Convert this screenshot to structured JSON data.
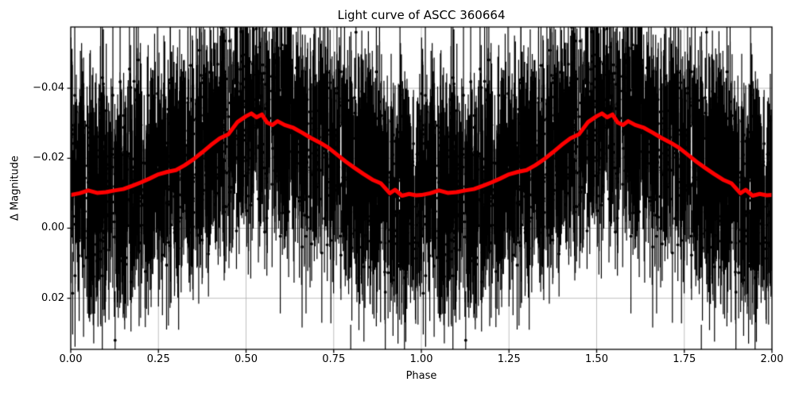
{
  "chart_data": {
    "type": "scatter",
    "title": "Light curve of ASCC 360664",
    "xlabel": "Phase",
    "ylabel": "Δ Magnitude",
    "xlim": [
      0,
      2
    ],
    "ylim_top": -0.0575,
    "ylim_bottom": 0.0346,
    "y_inverted": true,
    "grid": true,
    "legend": "none",
    "x_ticks": [
      0,
      0.25,
      0.5,
      0.75,
      1.0,
      1.25,
      1.5,
      1.75,
      2.0
    ],
    "x_tick_labels": [
      "0.00",
      "0.25",
      "0.50",
      "0.75",
      "1.00",
      "1.25",
      "1.50",
      "1.75",
      "2.00"
    ],
    "y_ticks": [
      -0.04,
      -0.02,
      0.0,
      0.02
    ],
    "y_tick_labels": [
      "−0.04",
      "−0.02",
      "0.00",
      "0.02"
    ],
    "colors": {
      "background": "#ffffff",
      "axis": "#000000",
      "grid": "#b0b0b0",
      "observations": "#000000",
      "mean_line": "#ff0000"
    },
    "series": [
      {
        "name": "smoothed-mean",
        "type": "line",
        "color": "#ff0000",
        "linewidth": 5,
        "repeat_offsets": [
          0,
          1
        ],
        "phase": [
          0.0,
          0.025,
          0.05,
          0.075,
          0.1,
          0.125,
          0.15,
          0.175,
          0.2,
          0.225,
          0.25,
          0.275,
          0.3,
          0.325,
          0.35,
          0.375,
          0.4,
          0.425,
          0.45,
          0.475,
          0.5,
          0.515,
          0.53,
          0.545,
          0.56,
          0.575,
          0.59,
          0.61,
          0.635,
          0.66,
          0.685,
          0.71,
          0.735,
          0.76,
          0.785,
          0.81,
          0.835,
          0.86,
          0.885,
          0.91,
          0.925,
          0.945,
          0.965,
          0.985,
          1.0
        ],
        "values": [
          -0.0095,
          -0.01,
          -0.0108,
          -0.0101,
          -0.0103,
          -0.0108,
          -0.0112,
          -0.0121,
          -0.0131,
          -0.0142,
          -0.0154,
          -0.0161,
          -0.0166,
          -0.018,
          -0.0197,
          -0.0217,
          -0.0238,
          -0.0257,
          -0.0269,
          -0.0303,
          -0.032,
          -0.0328,
          -0.0317,
          -0.0325,
          -0.0302,
          -0.0295,
          -0.0306,
          -0.0295,
          -0.0287,
          -0.0273,
          -0.0258,
          -0.0245,
          -0.023,
          -0.021,
          -0.019,
          -0.0172,
          -0.0155,
          -0.0139,
          -0.0128,
          -0.01,
          -0.011,
          -0.0093,
          -0.0098,
          -0.0094,
          -0.0095
        ]
      },
      {
        "name": "observations-errorbar-cloud",
        "type": "errorbar",
        "color": "#000000",
        "marker": "dot",
        "marker_radius": 1.9,
        "elinewidth": 1.2,
        "n_points": 1600,
        "noise_sigma": 0.011,
        "outlier_fraction": 0.02,
        "outlier_extra_sigma": 0.018,
        "err_min": 0.01,
        "err_max": 0.024,
        "seed": 12,
        "repeat_offsets": [
          0,
          1
        ]
      }
    ]
  }
}
